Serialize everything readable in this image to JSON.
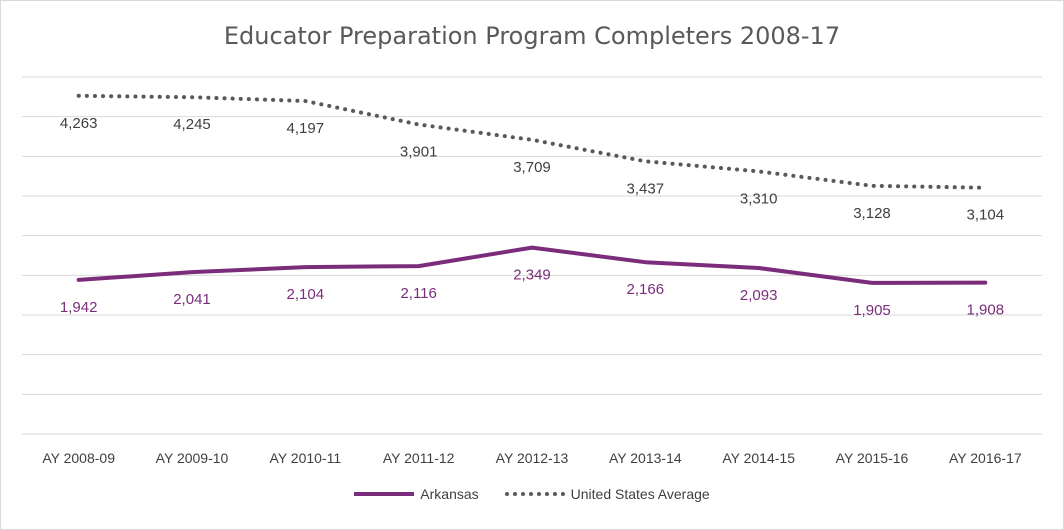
{
  "chart_data": {
    "type": "line",
    "title": "Educator Preparation Program Completers 2008-17",
    "categories": [
      "AY 2008-09",
      "AY 2009-10",
      "AY 2010-11",
      "AY 2011-12",
      "AY 2012-13",
      "AY 2013-14",
      "AY 2014-15",
      "AY 2015-16",
      "AY 2016-17"
    ],
    "series": [
      {
        "name": "Arkansas",
        "values": [
          1942,
          2041,
          2104,
          2116,
          2349,
          2166,
          2093,
          1905,
          1908
        ],
        "labels": [
          "1,942",
          "2,041",
          "2,104",
          "2,116",
          "2,349",
          "2,166",
          "2,093",
          "1,905",
          "1,908"
        ],
        "color": "#7b2d7b",
        "style": "solid"
      },
      {
        "name": "United States Average",
        "values": [
          4263,
          4245,
          4197,
          3901,
          3709,
          3437,
          3310,
          3128,
          3104
        ],
        "labels": [
          "4,263",
          "4,245",
          "4,197",
          "3,901",
          "3,709",
          "3,437",
          "3,310",
          "3,128",
          "3,104"
        ],
        "color": "#595959",
        "style": "dotted"
      }
    ],
    "ylim": [
      0,
      4500
    ],
    "grid": true,
    "legend": "bottom"
  }
}
